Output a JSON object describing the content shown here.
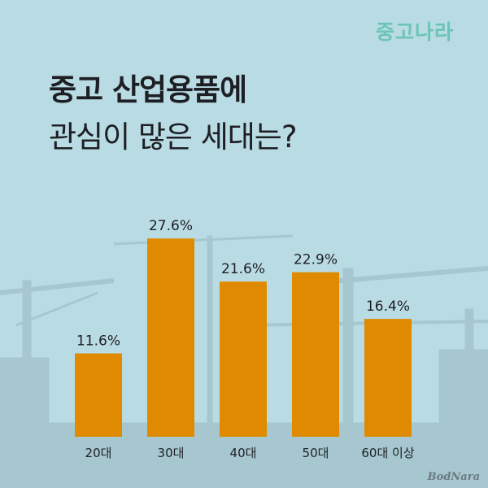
{
  "brand": "중고나라",
  "title": {
    "line1": "중고 산업용품에",
    "line2": "관심이 많은 세대는?"
  },
  "watermark": "BodNara",
  "colors": {
    "background": "#b9dbe3",
    "bar": "#df8a00",
    "text": "#1e1f24",
    "brand": "#6cc4b8",
    "skyline": "#9fc1cb"
  },
  "chart_data": {
    "type": "bar",
    "title": "",
    "xlabel": "",
    "ylabel": "",
    "categories": [
      "20대",
      "30대",
      "40대",
      "50대",
      "60대 이상"
    ],
    "values": [
      11.6,
      27.6,
      21.6,
      22.9,
      16.4
    ],
    "value_labels": [
      "11.6%",
      "27.6%",
      "21.6%",
      "22.9%",
      "16.4%"
    ],
    "ylim": [
      0,
      30
    ],
    "grid": false,
    "legend": "none"
  }
}
